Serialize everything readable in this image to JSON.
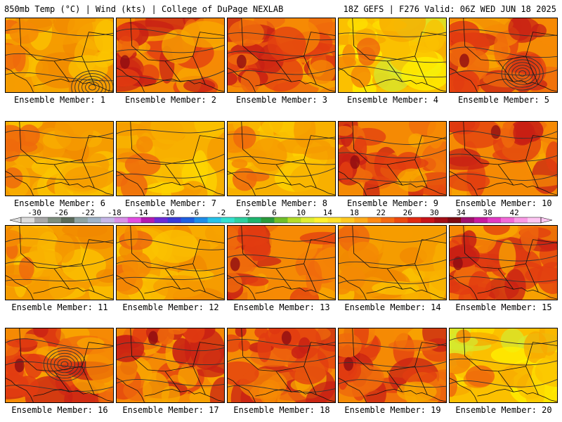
{
  "header": {
    "left": "850mb Temp (°C) | Wind (kts) | College of DuPage NEXLAB",
    "right": "18Z GEFS | F276 Valid: 06Z WED JUN 18 2025"
  },
  "member_prefix": "Ensemble Member: ",
  "members": [
    {
      "label": "Ensemble Member: 1",
      "tone": "warm",
      "hot": "left",
      "low": true
    },
    {
      "label": "Ensemble Member: 2",
      "tone": "hot",
      "hot": "left",
      "low": false
    },
    {
      "label": "Ensemble Member: 3",
      "tone": "hot",
      "hot": "left",
      "low": false
    },
    {
      "label": "Ensemble Member: 4",
      "tone": "cool",
      "hot": "left",
      "low": false
    },
    {
      "label": "Ensemble Member: 5",
      "tone": "hot",
      "hot": "left",
      "low": true
    },
    {
      "label": "Ensemble Member: 6",
      "tone": "warm",
      "hot": "left",
      "low": false
    },
    {
      "label": "Ensemble Member: 7",
      "tone": "mild",
      "hot": "left",
      "low": false
    },
    {
      "label": "Ensemble Member: 8",
      "tone": "mild",
      "hot": "left",
      "low": false
    },
    {
      "label": "Ensemble Member: 9",
      "tone": "hot",
      "hot": "left",
      "low": false
    },
    {
      "label": "Ensemble Member: 10",
      "tone": "hot",
      "hot": "top",
      "low": false
    },
    {
      "label": "Ensemble Member: 11",
      "tone": "warm",
      "hot": "left",
      "low": false
    },
    {
      "label": "Ensemble Member: 12",
      "tone": "warm",
      "hot": "left",
      "low": false
    },
    {
      "label": "Ensemble Member: 13",
      "tone": "hot",
      "hot": "left",
      "low": false
    },
    {
      "label": "Ensemble Member: 14",
      "tone": "warm",
      "hot": "left",
      "low": false
    },
    {
      "label": "Ensemble Member: 15",
      "tone": "hot",
      "hot": "left",
      "low": false
    },
    {
      "label": "Ensemble Member: 16",
      "tone": "hot",
      "hot": "left",
      "low": true
    },
    {
      "label": "Ensemble Member: 17",
      "tone": "hot",
      "hot": "top",
      "low": false
    },
    {
      "label": "Ensemble Member: 18",
      "tone": "hot",
      "hot": "top",
      "low": false
    },
    {
      "label": "Ensemble Member: 19",
      "tone": "hot",
      "hot": "left",
      "low": false
    },
    {
      "label": "Ensemble Member: 20",
      "tone": "cool",
      "hot": "left",
      "low": false
    }
  ],
  "colorbar": {
    "labels": [
      "-30",
      "-26",
      "-22",
      "-18",
      "-14",
      "-10",
      "-6",
      "-2",
      "2",
      "6",
      "10",
      "14",
      "18",
      "22",
      "26",
      "30",
      "34",
      "38",
      "42"
    ],
    "colors": [
      "#dcdcdc",
      "#a8a8a8",
      "#7d8e7d",
      "#5b6b5b",
      "#8fa4a4",
      "#9fb3c8",
      "#c6b7e8",
      "#d890e8",
      "#e24ee2",
      "#b21ab2",
      "#6a2bd6",
      "#3a3ad8",
      "#1f5fe0",
      "#1e8de8",
      "#27c2e8",
      "#34e0d0",
      "#2ed0a0",
      "#1eb46e",
      "#2a9a3c",
      "#6fbf2a",
      "#b4dc2a",
      "#e0ee32",
      "#fff12e",
      "#ffe028",
      "#ffc820",
      "#ffab1a",
      "#ff8a14",
      "#f56a12",
      "#ec4a10",
      "#e02a12",
      "#c8141a",
      "#a40e16",
      "#7e0a12",
      "#a0106e",
      "#c81aa0",
      "#e23ac4",
      "#f26ad8",
      "#fa9ae6",
      "#fdc6f2"
    ]
  },
  "palette": {
    "cool": [
      "#f7a800",
      "#fbc000",
      "#fde000",
      "#fff200",
      "#d6e82e"
    ],
    "mild": [
      "#f59a00",
      "#f8b000",
      "#fbc400",
      "#fdd600"
    ],
    "warm": [
      "#f08800",
      "#f59c00",
      "#f8b000",
      "#fbc400"
    ],
    "hot": [
      "#c82014",
      "#e23c10",
      "#ef6a0c",
      "#f58a04",
      "#f8a800"
    ],
    "extreme": [
      "#8e0d12",
      "#a0106e"
    ],
    "contour": "#333333",
    "coast": "#111111"
  }
}
